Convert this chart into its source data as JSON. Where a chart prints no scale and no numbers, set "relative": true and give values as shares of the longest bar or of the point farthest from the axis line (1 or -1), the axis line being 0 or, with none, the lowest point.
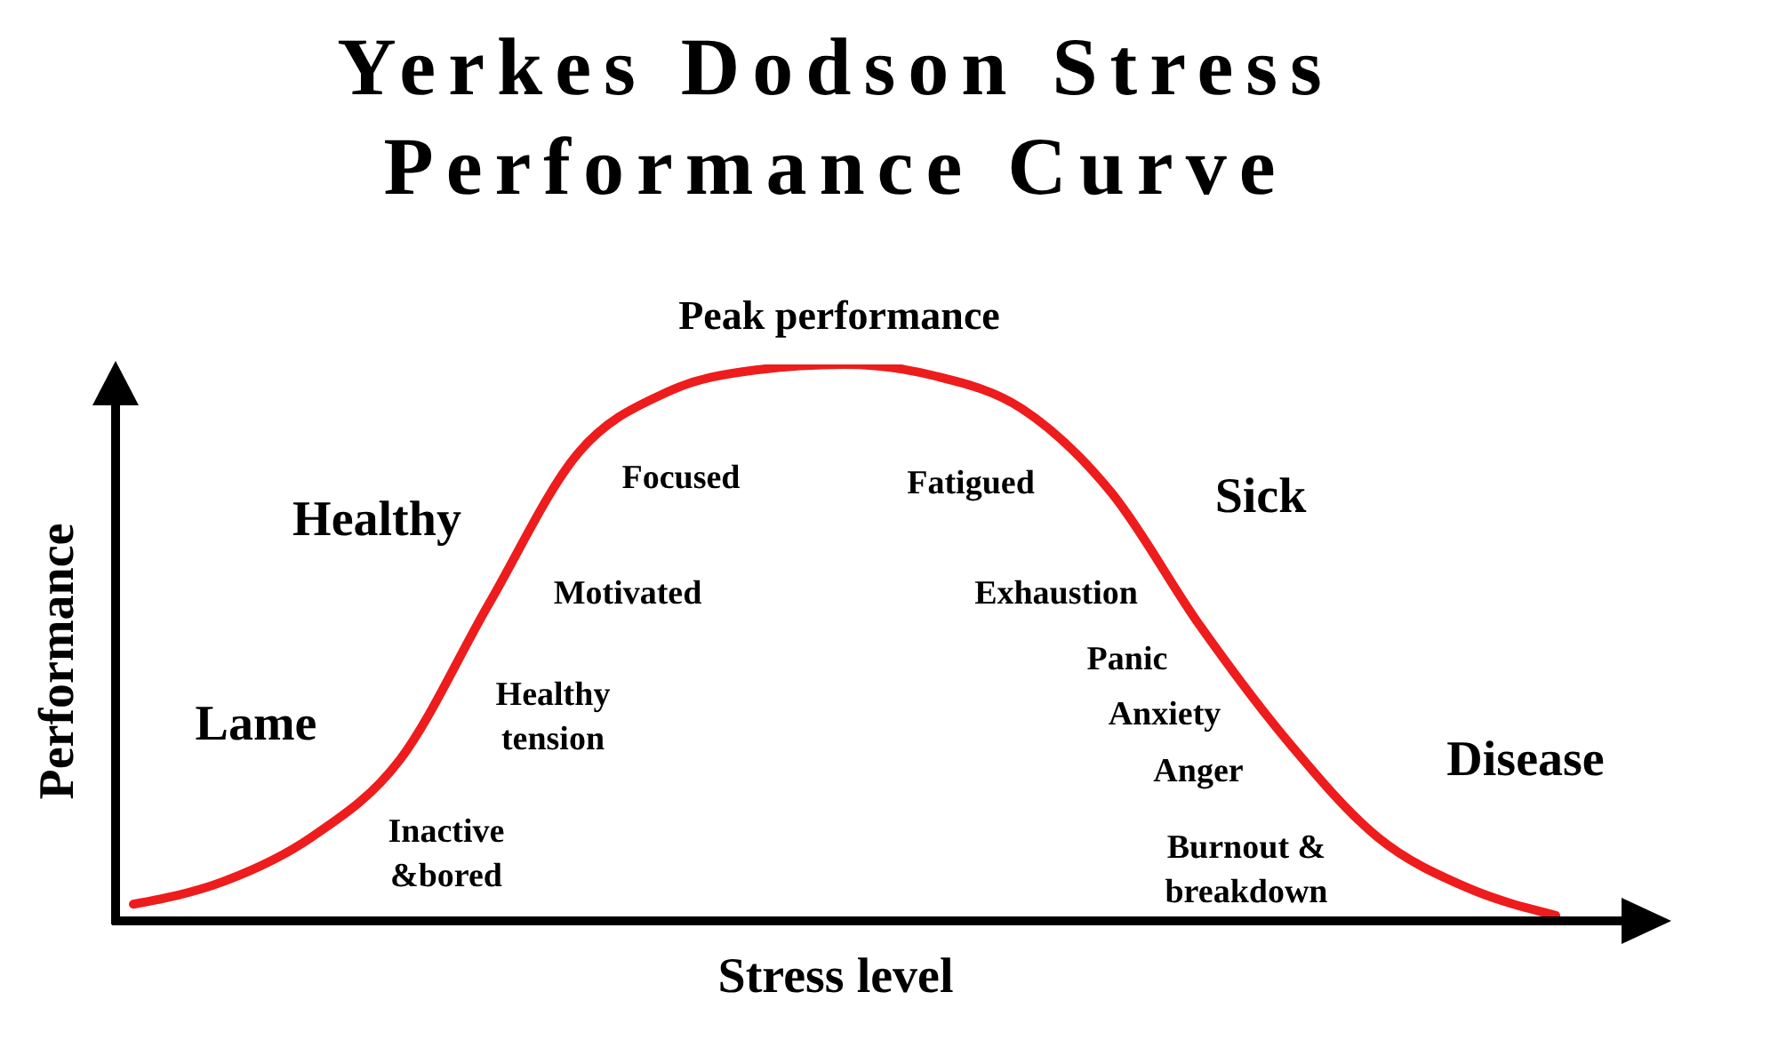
{
  "chart_data": {
    "type": "line",
    "title": "Yerkes Dodson Stress Performance Curve",
    "xlabel": "Stress level",
    "ylabel": "Performance",
    "relative": true,
    "categories": [
      null,
      null,
      null,
      null,
      null,
      null,
      null,
      null,
      null,
      null,
      null,
      null,
      null,
      null,
      null,
      null,
      null
    ],
    "series": [
      {
        "color": "#ee1c1c",
        "values": [
          0.03,
          0.07,
          0.15,
          0.29,
          0.57,
          0.84,
          0.95,
          0.99,
          1.0,
          0.98,
          0.92,
          0.77,
          0.53,
          0.32,
          0.15,
          0.06,
          0.01
        ]
      }
    ],
    "annotations": [
      "Peak performance",
      "Healthy",
      "Focused",
      "Fatigued",
      "Sick",
      "Motivated",
      "Exhaustion",
      "Lame",
      "Healthy\ntension",
      "Panic",
      "Anxiety",
      "Anger",
      "Disease",
      "Inactive\n&bored",
      "Burnout &\nbreakdown"
    ],
    "grid": false,
    "legend": false
  }
}
